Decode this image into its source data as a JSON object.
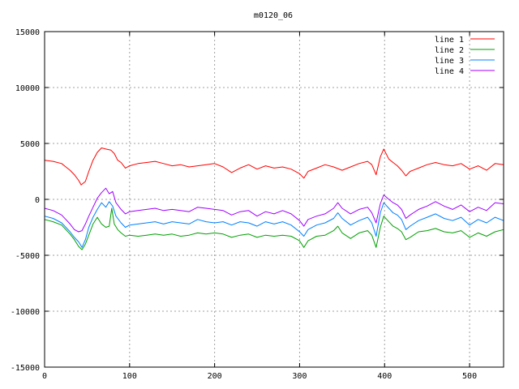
{
  "chart_data": {
    "type": "line",
    "title": "m0120_06",
    "xlim": [
      0,
      540
    ],
    "ylim": [
      -15000,
      15000
    ],
    "xticks": [
      0,
      100,
      200,
      300,
      400,
      500
    ],
    "yticks": [
      -15000,
      -10000,
      -5000,
      0,
      5000,
      10000,
      15000
    ],
    "grid": true,
    "legend_position": "top-right",
    "series": [
      {
        "name": "line 1",
        "color": "#ff0000",
        "points": [
          [
            0,
            3500
          ],
          [
            10,
            3400
          ],
          [
            20,
            3200
          ],
          [
            25,
            2900
          ],
          [
            30,
            2600
          ],
          [
            35,
            2200
          ],
          [
            40,
            1700
          ],
          [
            43,
            1300
          ],
          [
            48,
            1600
          ],
          [
            52,
            2500
          ],
          [
            57,
            3500
          ],
          [
            62,
            4200
          ],
          [
            67,
            4600
          ],
          [
            72,
            4500
          ],
          [
            78,
            4400
          ],
          [
            82,
            4100
          ],
          [
            86,
            3500
          ],
          [
            90,
            3300
          ],
          [
            95,
            2800
          ],
          [
            100,
            3000
          ],
          [
            110,
            3200
          ],
          [
            120,
            3300
          ],
          [
            130,
            3400
          ],
          [
            140,
            3200
          ],
          [
            150,
            3000
          ],
          [
            160,
            3100
          ],
          [
            170,
            2900
          ],
          [
            180,
            3000
          ],
          [
            190,
            3100
          ],
          [
            200,
            3200
          ],
          [
            210,
            2900
          ],
          [
            220,
            2400
          ],
          [
            230,
            2800
          ],
          [
            240,
            3100
          ],
          [
            250,
            2700
          ],
          [
            260,
            3000
          ],
          [
            270,
            2800
          ],
          [
            280,
            2900
          ],
          [
            290,
            2700
          ],
          [
            300,
            2300
          ],
          [
            305,
            1900
          ],
          [
            310,
            2500
          ],
          [
            320,
            2800
          ],
          [
            330,
            3100
          ],
          [
            340,
            2900
          ],
          [
            350,
            2600
          ],
          [
            360,
            2900
          ],
          [
            370,
            3200
          ],
          [
            380,
            3400
          ],
          [
            385,
            3100
          ],
          [
            390,
            2200
          ],
          [
            395,
            3800
          ],
          [
            399,
            4500
          ],
          [
            405,
            3600
          ],
          [
            410,
            3300
          ],
          [
            415,
            3000
          ],
          [
            420,
            2600
          ],
          [
            425,
            2100
          ],
          [
            430,
            2500
          ],
          [
            440,
            2800
          ],
          [
            450,
            3100
          ],
          [
            460,
            3300
          ],
          [
            470,
            3100
          ],
          [
            480,
            3000
          ],
          [
            490,
            3200
          ],
          [
            500,
            2700
          ],
          [
            510,
            3000
          ],
          [
            520,
            2600
          ],
          [
            530,
            3200
          ],
          [
            540,
            3100
          ]
        ]
      },
      {
        "name": "line 2",
        "color": "#00a000",
        "points": [
          [
            0,
            -1800
          ],
          [
            10,
            -2000
          ],
          [
            20,
            -2300
          ],
          [
            25,
            -2700
          ],
          [
            30,
            -3100
          ],
          [
            35,
            -3600
          ],
          [
            40,
            -4200
          ],
          [
            44,
            -4500
          ],
          [
            48,
            -4000
          ],
          [
            52,
            -3200
          ],
          [
            57,
            -2200
          ],
          [
            62,
            -1600
          ],
          [
            67,
            -2200
          ],
          [
            72,
            -2500
          ],
          [
            76,
            -2400
          ],
          [
            79,
            -800
          ],
          [
            82,
            -2200
          ],
          [
            86,
            -2700
          ],
          [
            90,
            -3000
          ],
          [
            95,
            -3300
          ],
          [
            100,
            -3200
          ],
          [
            110,
            -3300
          ],
          [
            120,
            -3200
          ],
          [
            130,
            -3100
          ],
          [
            140,
            -3200
          ],
          [
            150,
            -3100
          ],
          [
            160,
            -3300
          ],
          [
            170,
            -3200
          ],
          [
            180,
            -3000
          ],
          [
            190,
            -3100
          ],
          [
            200,
            -3000
          ],
          [
            210,
            -3100
          ],
          [
            220,
            -3400
          ],
          [
            230,
            -3200
          ],
          [
            240,
            -3100
          ],
          [
            250,
            -3400
          ],
          [
            260,
            -3200
          ],
          [
            270,
            -3300
          ],
          [
            280,
            -3200
          ],
          [
            290,
            -3300
          ],
          [
            300,
            -3700
          ],
          [
            305,
            -4300
          ],
          [
            310,
            -3700
          ],
          [
            320,
            -3300
          ],
          [
            330,
            -3200
          ],
          [
            340,
            -2800
          ],
          [
            345,
            -2400
          ],
          [
            350,
            -3000
          ],
          [
            360,
            -3500
          ],
          [
            370,
            -3000
          ],
          [
            380,
            -2800
          ],
          [
            385,
            -3200
          ],
          [
            390,
            -4300
          ],
          [
            395,
            -2500
          ],
          [
            399,
            -1500
          ],
          [
            405,
            -2000
          ],
          [
            410,
            -2400
          ],
          [
            415,
            -2600
          ],
          [
            420,
            -2900
          ],
          [
            425,
            -3600
          ],
          [
            430,
            -3400
          ],
          [
            440,
            -2900
          ],
          [
            450,
            -2800
          ],
          [
            460,
            -2600
          ],
          [
            470,
            -2900
          ],
          [
            480,
            -3000
          ],
          [
            490,
            -2800
          ],
          [
            500,
            -3400
          ],
          [
            510,
            -3000
          ],
          [
            520,
            -3300
          ],
          [
            530,
            -2900
          ],
          [
            540,
            -2700
          ]
        ]
      },
      {
        "name": "line 3",
        "color": "#0080ff",
        "points": [
          [
            0,
            -1500
          ],
          [
            10,
            -1700
          ],
          [
            20,
            -2100
          ],
          [
            25,
            -2500
          ],
          [
            30,
            -2900
          ],
          [
            35,
            -3400
          ],
          [
            40,
            -3800
          ],
          [
            44,
            -4300
          ],
          [
            48,
            -3600
          ],
          [
            52,
            -2500
          ],
          [
            57,
            -1600
          ],
          [
            62,
            -900
          ],
          [
            67,
            -300
          ],
          [
            72,
            -700
          ],
          [
            76,
            -200
          ],
          [
            80,
            -600
          ],
          [
            84,
            -1500
          ],
          [
            90,
            -2100
          ],
          [
            95,
            -2500
          ],
          [
            100,
            -2300
          ],
          [
            110,
            -2200
          ],
          [
            120,
            -2100
          ],
          [
            130,
            -2000
          ],
          [
            140,
            -2200
          ],
          [
            150,
            -2000
          ],
          [
            160,
            -2100
          ],
          [
            170,
            -2200
          ],
          [
            180,
            -1800
          ],
          [
            190,
            -2000
          ],
          [
            200,
            -2100
          ],
          [
            210,
            -2000
          ],
          [
            220,
            -2300
          ],
          [
            230,
            -2000
          ],
          [
            240,
            -2100
          ],
          [
            250,
            -2400
          ],
          [
            260,
            -2000
          ],
          [
            270,
            -2200
          ],
          [
            280,
            -2000
          ],
          [
            290,
            -2300
          ],
          [
            300,
            -2900
          ],
          [
            305,
            -3300
          ],
          [
            310,
            -2700
          ],
          [
            320,
            -2300
          ],
          [
            330,
            -2100
          ],
          [
            340,
            -1700
          ],
          [
            345,
            -1200
          ],
          [
            350,
            -1700
          ],
          [
            360,
            -2300
          ],
          [
            370,
            -1900
          ],
          [
            380,
            -1600
          ],
          [
            385,
            -2100
          ],
          [
            390,
            -3300
          ],
          [
            395,
            -1200
          ],
          [
            399,
            -300
          ],
          [
            405,
            -800
          ],
          [
            410,
            -1200
          ],
          [
            415,
            -1400
          ],
          [
            420,
            -1800
          ],
          [
            425,
            -2700
          ],
          [
            430,
            -2400
          ],
          [
            440,
            -1900
          ],
          [
            450,
            -1600
          ],
          [
            460,
            -1300
          ],
          [
            470,
            -1700
          ],
          [
            480,
            -1900
          ],
          [
            490,
            -1600
          ],
          [
            500,
            -2300
          ],
          [
            510,
            -1800
          ],
          [
            520,
            -2100
          ],
          [
            530,
            -1600
          ],
          [
            540,
            -1900
          ]
        ]
      },
      {
        "name": "line 4",
        "color": "#a000ff",
        "points": [
          [
            0,
            -800
          ],
          [
            10,
            -1000
          ],
          [
            20,
            -1400
          ],
          [
            25,
            -1800
          ],
          [
            30,
            -2200
          ],
          [
            35,
            -2700
          ],
          [
            40,
            -2900
          ],
          [
            44,
            -2800
          ],
          [
            48,
            -2200
          ],
          [
            52,
            -1500
          ],
          [
            57,
            -700
          ],
          [
            62,
            100
          ],
          [
            67,
            600
          ],
          [
            72,
            1000
          ],
          [
            76,
            500
          ],
          [
            80,
            700
          ],
          [
            84,
            -300
          ],
          [
            90,
            -900
          ],
          [
            95,
            -1300
          ],
          [
            100,
            -1100
          ],
          [
            110,
            -1000
          ],
          [
            120,
            -900
          ],
          [
            130,
            -800
          ],
          [
            140,
            -1000
          ],
          [
            150,
            -900
          ],
          [
            160,
            -1000
          ],
          [
            170,
            -1100
          ],
          [
            180,
            -700
          ],
          [
            190,
            -800
          ],
          [
            200,
            -900
          ],
          [
            210,
            -1000
          ],
          [
            220,
            -1400
          ],
          [
            230,
            -1100
          ],
          [
            240,
            -1000
          ],
          [
            250,
            -1500
          ],
          [
            260,
            -1100
          ],
          [
            270,
            -1300
          ],
          [
            280,
            -1000
          ],
          [
            290,
            -1300
          ],
          [
            300,
            -1900
          ],
          [
            305,
            -2400
          ],
          [
            310,
            -1800
          ],
          [
            320,
            -1500
          ],
          [
            330,
            -1300
          ],
          [
            340,
            -800
          ],
          [
            345,
            -300
          ],
          [
            350,
            -800
          ],
          [
            360,
            -1300
          ],
          [
            370,
            -900
          ],
          [
            380,
            -700
          ],
          [
            385,
            -1200
          ],
          [
            390,
            -2100
          ],
          [
            395,
            -400
          ],
          [
            399,
            400
          ],
          [
            405,
            0
          ],
          [
            410,
            -300
          ],
          [
            415,
            -500
          ],
          [
            420,
            -900
          ],
          [
            425,
            -1700
          ],
          [
            430,
            -1400
          ],
          [
            440,
            -900
          ],
          [
            450,
            -600
          ],
          [
            460,
            -200
          ],
          [
            470,
            -600
          ],
          [
            480,
            -900
          ],
          [
            490,
            -500
          ],
          [
            500,
            -1100
          ],
          [
            510,
            -700
          ],
          [
            520,
            -1000
          ],
          [
            530,
            -300
          ],
          [
            540,
            -400
          ]
        ]
      }
    ]
  }
}
